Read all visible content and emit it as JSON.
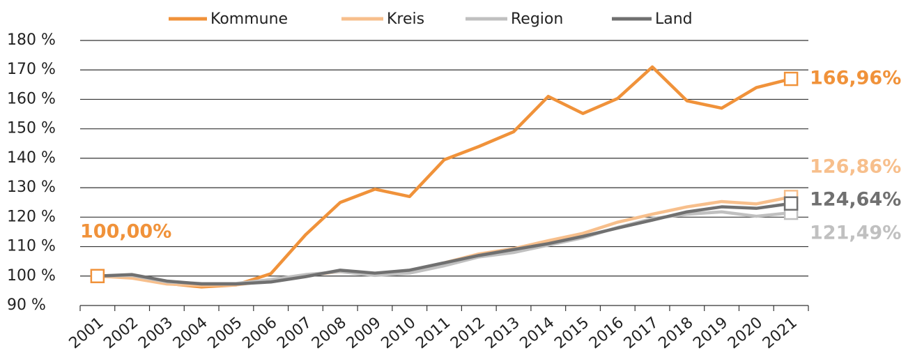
{
  "chart_data": {
    "type": "line",
    "categories": [
      "2001",
      "2002",
      "2003",
      "2004",
      "2005",
      "2006",
      "2007",
      "2008",
      "2009",
      "2010",
      "2011",
      "2012",
      "2013",
      "2014",
      "2015",
      "2016",
      "2017",
      "2018",
      "2019",
      "2020",
      "2021"
    ],
    "series": [
      {
        "name": "Kommune",
        "color": "#f0923a",
        "values": [
          100,
          99.5,
          97.5,
          96.3,
          97,
          100.8,
          114,
          125,
          129.5,
          127,
          139.5,
          144,
          149,
          161,
          155.2,
          160.3,
          171,
          159.5,
          157,
          164,
          166.96
        ],
        "value_labels": [
          "100,00%",
          null,
          null,
          null,
          null,
          null,
          null,
          null,
          null,
          null,
          null,
          null,
          null,
          null,
          null,
          null,
          null,
          null,
          null,
          null,
          "166,96%"
        ]
      },
      {
        "name": "Kreis",
        "color": "#f7bf8c",
        "values": [
          100,
          99.3,
          97.3,
          96.8,
          97,
          98.5,
          100.2,
          101.5,
          100.5,
          101.5,
          104.5,
          107.5,
          109.3,
          112,
          114.5,
          118.3,
          121,
          123.5,
          125.3,
          124.5,
          126.86
        ],
        "value_labels": [
          null,
          null,
          null,
          null,
          null,
          null,
          null,
          null,
          null,
          null,
          null,
          null,
          null,
          null,
          null,
          null,
          null,
          null,
          null,
          null,
          "126,86%"
        ]
      },
      {
        "name": "Region",
        "color": "#c0c0c0",
        "values": [
          100,
          100.2,
          98,
          97.5,
          97.5,
          98.8,
          100.5,
          101.5,
          100.2,
          101,
          103.5,
          106.5,
          108,
          110.5,
          113,
          116.5,
          119.5,
          121,
          121.8,
          120.3,
          121.49
        ],
        "value_labels": [
          null,
          null,
          null,
          null,
          null,
          null,
          null,
          null,
          null,
          null,
          null,
          null,
          null,
          null,
          null,
          null,
          null,
          null,
          null,
          null,
          "121,49%"
        ]
      },
      {
        "name": "Land",
        "color": "#707070",
        "values": [
          100,
          100.5,
          98.3,
          97.3,
          97.3,
          98,
          99.8,
          102,
          101,
          102,
          104.5,
          107,
          109,
          111,
          113.5,
          116.3,
          119,
          121.8,
          123.5,
          123,
          124.64
        ],
        "value_labels": [
          null,
          null,
          null,
          null,
          null,
          null,
          null,
          null,
          null,
          null,
          null,
          null,
          null,
          null,
          null,
          null,
          null,
          null,
          null,
          null,
          "124,64%"
        ]
      }
    ],
    "ylim": [
      90,
      180
    ],
    "yticks": [
      {
        "value": 90,
        "label": "90 %"
      },
      {
        "value": 100,
        "label": "100 %"
      },
      {
        "value": 110,
        "label": "110 %"
      },
      {
        "value": 120,
        "label": "120 %"
      },
      {
        "value": 130,
        "label": "130 %"
      },
      {
        "value": 140,
        "label": "140 %"
      },
      {
        "value": 150,
        "label": "150 %"
      },
      {
        "value": 160,
        "label": "160 %"
      },
      {
        "value": 170,
        "label": "170 %"
      },
      {
        "value": 180,
        "label": "180 %"
      }
    ],
    "grid": true,
    "legend": "top"
  }
}
